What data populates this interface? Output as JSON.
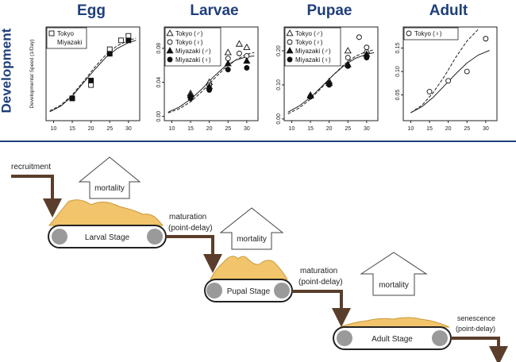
{
  "header": {
    "side_label": "Development",
    "stage_titles": [
      "Egg",
      "Larvae",
      "Pupae",
      "Adult"
    ]
  },
  "chart_data": [
    {
      "type": "scatter",
      "title": "Egg",
      "ylabel": "Developmental Speed (1/Day)",
      "xlim": [
        8,
        33
      ],
      "ylim": [
        0,
        0.21
      ],
      "xticks": [
        10,
        15,
        20,
        25,
        30
      ],
      "yticks": [],
      "legend": [
        "Tokyo",
        "Miyazaki"
      ],
      "series": [
        {
          "name": "Tokyo",
          "marker": "open-square",
          "x": [
            15,
            20,
            25,
            28,
            30
          ],
          "y": [
            0.05,
            0.08,
            0.16,
            0.18,
            0.19
          ]
        },
        {
          "name": "Miyazaki",
          "marker": "filled-square",
          "x": [
            15,
            20,
            25,
            30
          ],
          "y": [
            0.05,
            0.09,
            0.15,
            0.18
          ]
        }
      ],
      "curves": [
        {
          "style": "solid",
          "x": [
            9,
            12,
            15,
            18,
            21,
            24,
            27,
            30,
            32
          ],
          "y": [
            0.02,
            0.033,
            0.055,
            0.085,
            0.115,
            0.142,
            0.162,
            0.175,
            0.18
          ]
        },
        {
          "style": "dashed",
          "x": [
            9,
            12,
            15,
            18,
            21,
            24,
            27,
            30,
            32
          ],
          "y": [
            0.022,
            0.035,
            0.058,
            0.088,
            0.12,
            0.148,
            0.168,
            0.18,
            0.185
          ]
        }
      ]
    },
    {
      "type": "scatter",
      "title": "Larvae",
      "xlim": [
        8,
        33
      ],
      "ylim": [
        -0.005,
        0.105
      ],
      "xticks": [
        10,
        15,
        20,
        25,
        30
      ],
      "yticks": [
        0.0,
        0.04,
        0.08
      ],
      "ytick_labels": [
        "0.00",
        "0.04",
        "0.08"
      ],
      "legend": [
        "Tokyo (♂)",
        "Tokyo (♀)",
        "Miyazaki (♂)",
        "Miyazaki (♀)"
      ],
      "series": [
        {
          "name": "Tokyo (♂)",
          "marker": "open-triangle",
          "x": [
            15,
            20,
            25,
            28,
            30
          ],
          "y": [
            0.027,
            0.04,
            0.075,
            0.085,
            0.081
          ]
        },
        {
          "name": "Tokyo (♀)",
          "marker": "open-circle",
          "x": [
            15,
            20,
            25,
            28,
            30
          ],
          "y": [
            0.023,
            0.037,
            0.068,
            0.074,
            0.071
          ]
        },
        {
          "name": "Miyazaki (♂)",
          "marker": "filled-triangle",
          "x": [
            15,
            20,
            25,
            30
          ],
          "y": [
            0.025,
            0.035,
            0.062,
            0.065
          ]
        },
        {
          "name": "Miyazaki (♀)",
          "marker": "filled-circle",
          "x": [
            15,
            20,
            25,
            30
          ],
          "y": [
            0.021,
            0.031,
            0.055,
            0.057
          ]
        }
      ],
      "curves": [
        {
          "style": "solid",
          "x": [
            9,
            12,
            15,
            18,
            21,
            24,
            27,
            30,
            32
          ],
          "y": [
            0.005,
            0.011,
            0.02,
            0.032,
            0.046,
            0.058,
            0.066,
            0.07,
            0.071
          ]
        },
        {
          "style": "dashed",
          "x": [
            9,
            12,
            15,
            18,
            21,
            24,
            27,
            30,
            32
          ],
          "y": [
            0.004,
            0.009,
            0.017,
            0.029,
            0.043,
            0.056,
            0.066,
            0.073,
            0.075
          ]
        }
      ]
    },
    {
      "type": "scatter",
      "title": "Pupae",
      "xlim": [
        8,
        33
      ],
      "ylim": [
        -0.005,
        0.27
      ],
      "xticks": [
        10,
        15,
        20,
        25,
        30
      ],
      "yticks": [
        0.0,
        0.1,
        0.2
      ],
      "ytick_labels": [
        "0.00",
        "0.10",
        "0.20"
      ],
      "legend": [
        "Tokyo (♂)",
        "Tokyo (♀)",
        "Miyazaki (♂)",
        "Miyazaki (♀)"
      ],
      "series": [
        {
          "name": "Tokyo (♂)",
          "marker": "open-triangle",
          "x": [
            15,
            20,
            25,
            30
          ],
          "y": [
            0.07,
            0.11,
            0.2,
            0.2
          ]
        },
        {
          "name": "Tokyo (♀)",
          "marker": "open-circle",
          "x": [
            15,
            20,
            25,
            28,
            30
          ],
          "y": [
            0.066,
            0.105,
            0.18,
            0.24,
            0.21
          ]
        },
        {
          "name": "Miyazaki (♂)",
          "marker": "filled-triangle",
          "x": [
            15,
            20,
            25,
            30
          ],
          "y": [
            0.068,
            0.105,
            0.16,
            0.19
          ]
        },
        {
          "name": "Miyazaki (♀)",
          "marker": "filled-circle",
          "x": [
            15,
            20,
            25,
            30
          ],
          "y": [
            0.065,
            0.1,
            0.155,
            0.18
          ]
        }
      ],
      "curves": [
        {
          "style": "solid",
          "x": [
            9,
            12,
            15,
            18,
            21,
            24,
            27,
            30,
            32
          ],
          "y": [
            0.02,
            0.038,
            0.063,
            0.095,
            0.128,
            0.157,
            0.178,
            0.19,
            0.195
          ]
        },
        {
          "style": "dashed",
          "x": [
            9,
            12,
            15,
            18,
            21,
            24,
            27,
            30,
            32
          ],
          "y": [
            0.015,
            0.032,
            0.058,
            0.092,
            0.128,
            0.16,
            0.184,
            0.198,
            0.203
          ]
        }
      ]
    },
    {
      "type": "scatter",
      "title": "Adult",
      "xlim": [
        8,
        33
      ],
      "ylim": [
        -0.005,
        0.195
      ],
      "xticks": [
        10,
        15,
        20,
        25,
        30
      ],
      "yticks": [
        0.05,
        0.1,
        0.15
      ],
      "ytick_labels": [
        "0.05",
        "0.10",
        "0.15"
      ],
      "legend": [
        "Tokyo (♀)"
      ],
      "series": [
        {
          "name": "Tokyo (♀)",
          "marker": "open-circle",
          "x": [
            15,
            20,
            25,
            30
          ],
          "y": [
            0.057,
            0.08,
            0.1,
            0.17
          ]
        }
      ],
      "curves": [
        {
          "style": "solid",
          "x": [
            10,
            13,
            16,
            19,
            22,
            25,
            28,
            31
          ],
          "y": [
            0.012,
            0.025,
            0.045,
            0.07,
            0.095,
            0.118,
            0.135,
            0.145
          ]
        },
        {
          "style": "dashed",
          "x": [
            10,
            13,
            16,
            19,
            22,
            25,
            28
          ],
          "y": [
            0.012,
            0.028,
            0.055,
            0.09,
            0.13,
            0.165,
            0.19
          ]
        }
      ]
    }
  ],
  "diagram": {
    "recruitment": "recruitment",
    "mortality_larval": "mortality",
    "mortality_pupal": "mortality",
    "mortality_adult": "mortality",
    "larval_stage": "Larval Stage",
    "pupal_stage": "Pupal Stage",
    "adult_stage": "Adult Stage",
    "maturation_1_line1": "maturation",
    "maturation_1_line2": "(point-delay)",
    "maturation_2_line1": "maturation",
    "maturation_2_line2": "(point-delay)",
    "senescence_line1": "senescence",
    "senescence_line2": "(point-delay)",
    "colors": {
      "arrow": "#5a3e2b",
      "pile": "#f2c46b",
      "roller": "#9a9a9a",
      "title": "#1f3f7a"
    }
  }
}
